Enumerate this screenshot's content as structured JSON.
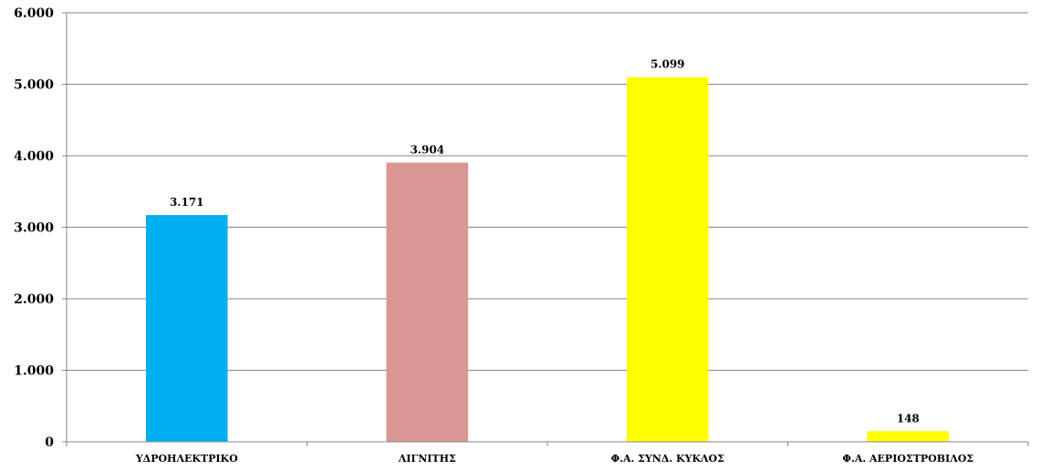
{
  "chart_data": {
    "type": "bar",
    "categories": [
      "ΥΔΡΟΗΛΕΚΤΡΙΚΟ",
      "ΛΙΓΝΙΤΗΣ",
      "Φ.Α. ΣΥΝΔ. ΚΥΚΛΟΣ",
      "Φ.Α. ΑΕΡΙΟΣΤΡΟΒΙΛΟΣ"
    ],
    "values": [
      3171,
      3904,
      5099,
      148
    ],
    "value_labels": [
      "3.171",
      "3.904",
      "5.099",
      "148"
    ],
    "bar_colors": [
      "#00b0f0",
      "#d99694",
      "#ffff00",
      "#ffff00"
    ],
    "ylim": [
      0,
      6000
    ],
    "yticks": [
      0,
      1000,
      2000,
      3000,
      4000,
      5000,
      6000
    ],
    "ytick_labels": [
      "0",
      "1.000",
      "2.000",
      "3.000",
      "4.000",
      "5.000",
      "6.000"
    ],
    "grid": true,
    "legend": "none",
    "title": "",
    "xlabel": "",
    "ylabel": ""
  }
}
